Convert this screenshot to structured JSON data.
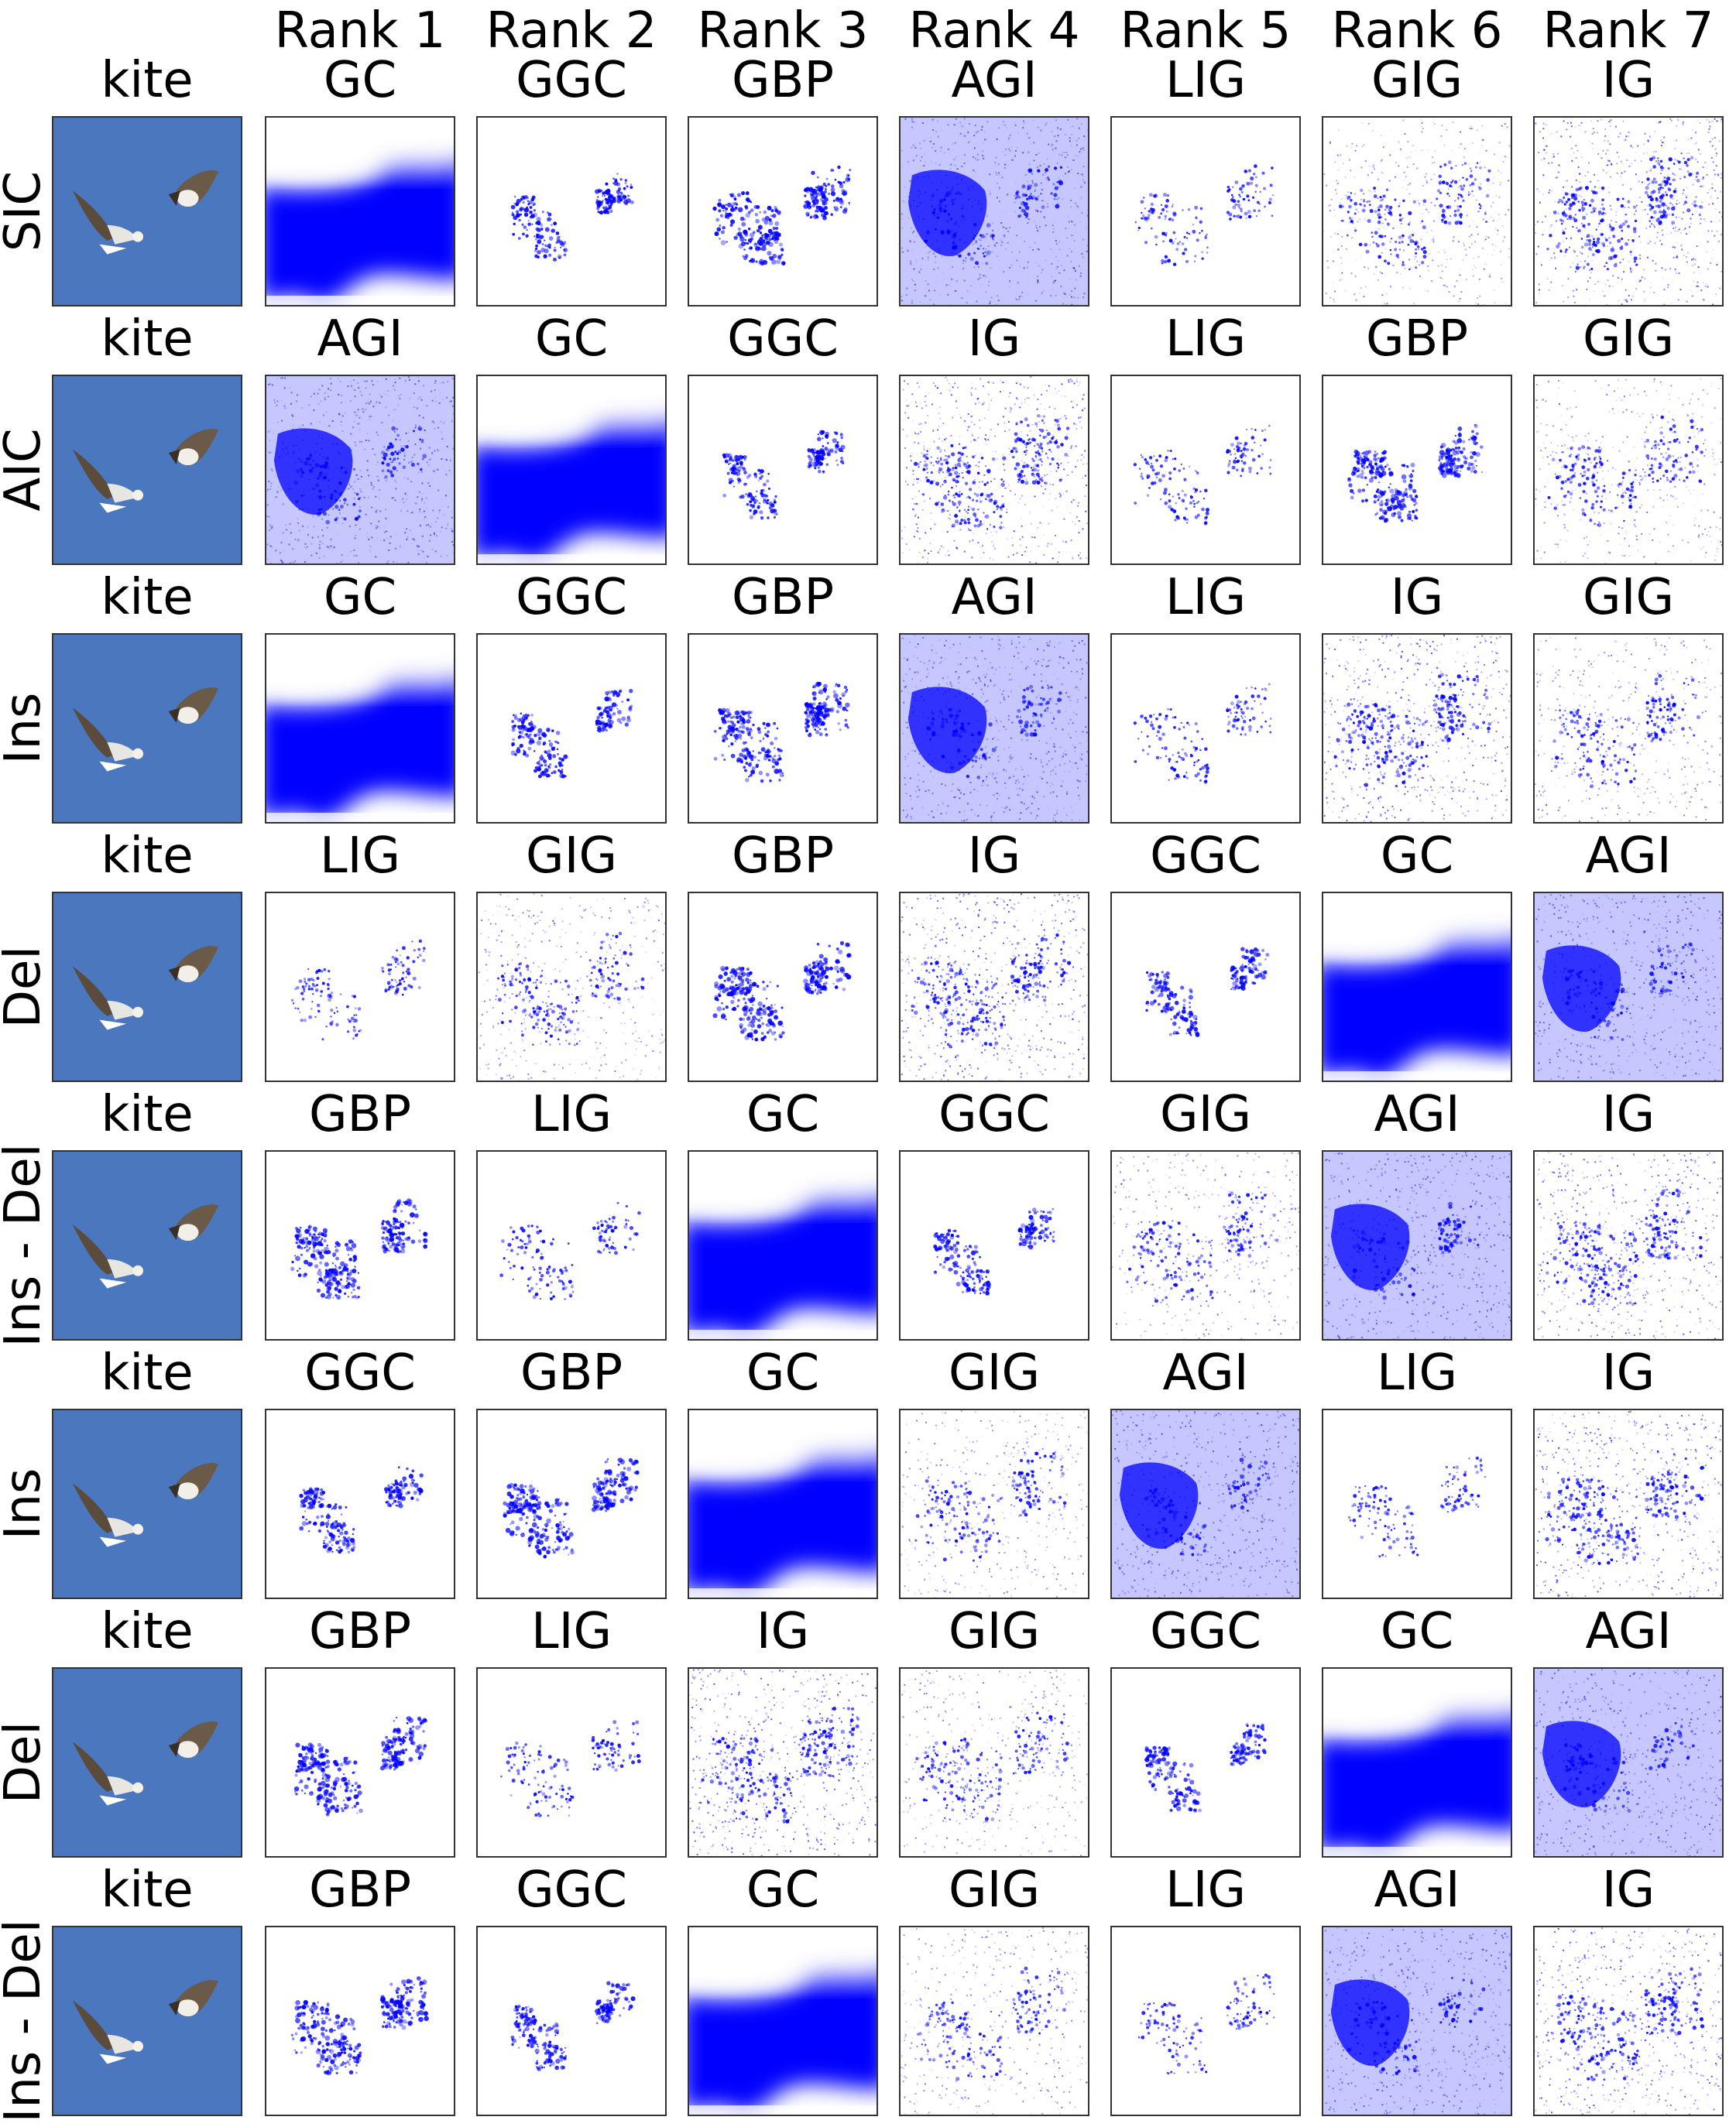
{
  "column_headers": [
    "Rank 1",
    "Rank 2",
    "Rank 3",
    "Rank 4",
    "Rank 5",
    "Rank 6",
    "Rank 7"
  ],
  "image_label": "kite",
  "colors": {
    "attribution": "#0000ff",
    "sky": "#4a77bd",
    "frame": "#333333"
  },
  "rows": [
    {
      "label": "SIC",
      "methods": [
        "GC",
        "GGC",
        "GBP",
        "AGI",
        "LIG",
        "GIG",
        "IG"
      ]
    },
    {
      "label": "AIC",
      "methods": [
        "AGI",
        "GC",
        "GGC",
        "IG",
        "LIG",
        "GBP",
        "GIG"
      ]
    },
    {
      "label": "Ins",
      "methods": [
        "GC",
        "GGC",
        "GBP",
        "AGI",
        "LIG",
        "IG",
        "GIG"
      ]
    },
    {
      "label": "Del",
      "methods": [
        "LIG",
        "GIG",
        "GBP",
        "IG",
        "GGC",
        "GC",
        "AGI"
      ]
    },
    {
      "label": "Ins - Del",
      "methods": [
        "GBP",
        "LIG",
        "GC",
        "GGC",
        "GIG",
        "AGI",
        "IG"
      ]
    },
    {
      "label": "Ins",
      "methods": [
        "GGC",
        "GBP",
        "GC",
        "GIG",
        "AGI",
        "LIG",
        "IG"
      ]
    },
    {
      "label": "Del",
      "methods": [
        "GBP",
        "LIG",
        "IG",
        "GIG",
        "GGC",
        "GC",
        "AGI"
      ]
    },
    {
      "label": "Ins - Del",
      "methods": [
        "GBP",
        "GGC",
        "GC",
        "GIG",
        "LIG",
        "AGI",
        "IG"
      ]
    }
  ]
}
